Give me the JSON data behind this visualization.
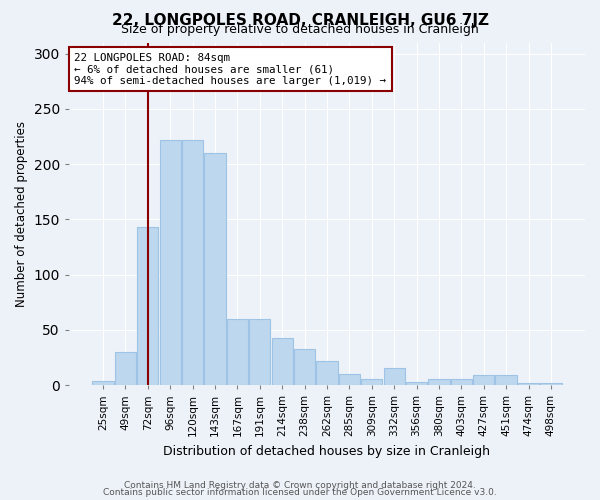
{
  "title": "22, LONGPOLES ROAD, CRANLEIGH, GU6 7JZ",
  "subtitle": "Size of property relative to detached houses in Cranleigh",
  "xlabel": "Distribution of detached houses by size in Cranleigh",
  "ylabel": "Number of detached properties",
  "categories": [
    "25sqm",
    "49sqm",
    "72sqm",
    "96sqm",
    "120sqm",
    "143sqm",
    "167sqm",
    "191sqm",
    "214sqm",
    "238sqm",
    "262sqm",
    "285sqm",
    "309sqm",
    "332sqm",
    "356sqm",
    "380sqm",
    "403sqm",
    "427sqm",
    "451sqm",
    "474sqm",
    "498sqm"
  ],
  "values": [
    4,
    30,
    143,
    222,
    222,
    210,
    60,
    60,
    43,
    33,
    22,
    10,
    5,
    15,
    3,
    5,
    5,
    9,
    9,
    2,
    2
  ],
  "bar_color": "#bdd7ee",
  "bar_edge_color": "#9dc3e6",
  "background_color": "#edf2f9",
  "ylim": [
    0,
    310
  ],
  "yticks": [
    0,
    50,
    100,
    150,
    200,
    250,
    300
  ],
  "annotation_text": "22 LONGPOLES ROAD: 84sqm\n← 6% of detached houses are smaller (61)\n94% of semi-detached houses are larger (1,019) →",
  "footnote1": "Contains HM Land Registry data © Crown copyright and database right 2024.",
  "footnote2": "Contains public sector information licensed under the Open Government Licence v3.0."
}
